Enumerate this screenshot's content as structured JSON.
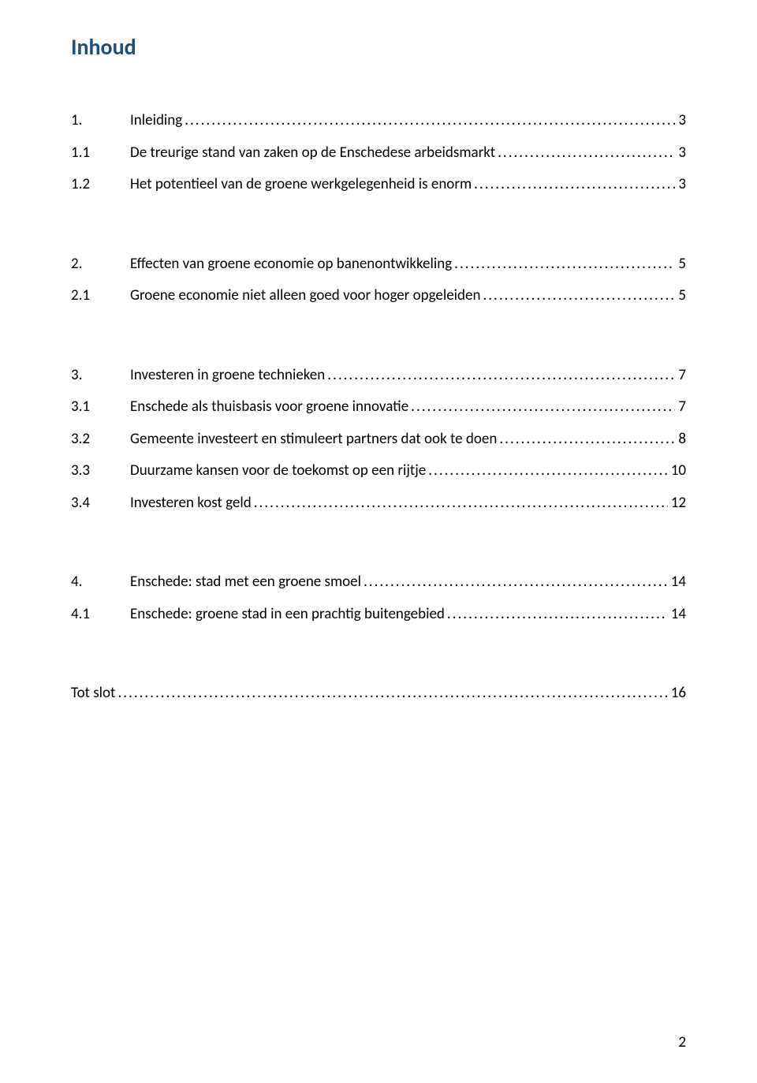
{
  "title_color": "#1f4e79",
  "text_color": "#000000",
  "title": "Inhoud",
  "footer_page_number": "2",
  "toc": [
    {
      "type": "chapter",
      "num": "1.",
      "label": "Inleiding",
      "page": "3"
    },
    {
      "type": "sub",
      "num": "1.1",
      "label": "De treurige stand van zaken op de Enschedese arbeidsmarkt",
      "page": "3"
    },
    {
      "type": "sub",
      "num": "1.2",
      "label": "Het potentieel van de groene werkgelegenheid is enorm",
      "page": "3"
    },
    {
      "type": "gap"
    },
    {
      "type": "chapter",
      "num": "2.",
      "label": "Effecten van groene economie op banenontwikkeling",
      "page": "5"
    },
    {
      "type": "sub",
      "num": "2.1",
      "label": "Groene economie niet alleen goed voor hoger opgeleiden",
      "page": "5"
    },
    {
      "type": "gap"
    },
    {
      "type": "chapter",
      "num": "3.",
      "label": "Investeren in groene technieken",
      "page": "7"
    },
    {
      "type": "sub",
      "num": "3.1",
      "label": "Enschede als thuisbasis voor groene innovatie",
      "page": "7"
    },
    {
      "type": "sub",
      "num": "3.2",
      "label": "Gemeente investeert en stimuleert partners dat ook te doen",
      "page": "8"
    },
    {
      "type": "sub",
      "num": "3.3",
      "label": "Duurzame kansen voor de toekomst op een rijtje",
      "page": "10"
    },
    {
      "type": "sub",
      "num": "3.4",
      "label": "Investeren kost geld",
      "page": "12"
    },
    {
      "type": "gap"
    },
    {
      "type": "chapter",
      "num": "4.",
      "label": "Enschede: stad met een groene smoel",
      "page": "14"
    },
    {
      "type": "sub",
      "num": "4.1",
      "label": "Enschede: groene stad in een prachtig buitengebied",
      "page": "14"
    },
    {
      "type": "gap"
    },
    {
      "type": "chapter",
      "num": "",
      "label": "Tot slot",
      "page": "16"
    }
  ]
}
